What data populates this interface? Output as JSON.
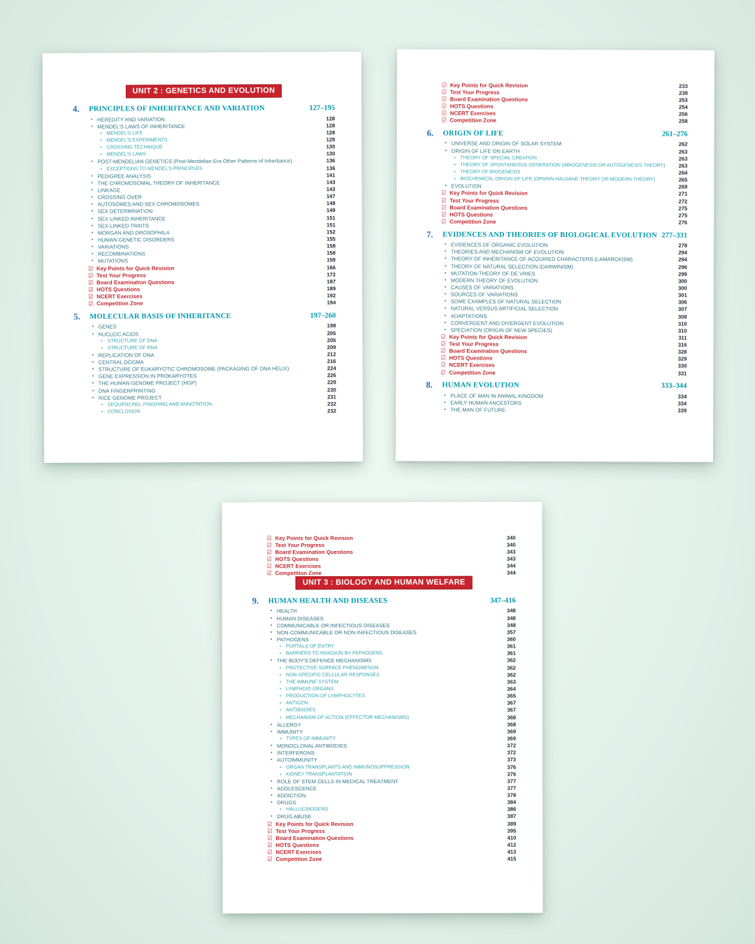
{
  "colors": {
    "background_top": "#eef8f3",
    "background_edge": "#d3e6de",
    "page": "#ffffff",
    "banner_red": "#c8232c",
    "accent_red": "#c0262c",
    "chapter_number_blue": "#1d6ab4",
    "chapter_teal": "#0098ab",
    "item_teal_dark": "#2f7585",
    "item_teal_light": "#2fa3b0",
    "page_number_dark": "#18262e"
  },
  "icons": {
    "checkbox": "☑",
    "bullet": "•"
  },
  "pages": [
    {
      "name": "toc-page-unit2-left",
      "entries": [
        {
          "t": "banner",
          "label": "UNIT 2 : GENETICS AND EVOLUTION"
        },
        {
          "t": "chapter",
          "num": "4.",
          "label": "PRINCIPLES OF INHERITANCE AND VARIATION",
          "pages": "127–195"
        },
        {
          "t": "i1",
          "label": "HEREDITY AND VARIATION",
          "p": "128"
        },
        {
          "t": "i1",
          "label": "MENDEL'S LAWS OF INHERITANCE",
          "p": "128"
        },
        {
          "t": "i2",
          "label": "MENDEL'S LIFE",
          "p": "128"
        },
        {
          "t": "i2",
          "label": "MENDEL'S EXPERIMENTS",
          "p": "129"
        },
        {
          "t": "i2",
          "label": "CROSSING TECHNIQUE",
          "p": "130"
        },
        {
          "t": "i2",
          "label": "MENDEL'S LAWS",
          "p": "130"
        },
        {
          "t": "i1",
          "label": "POST-MENDELIAN GENETICS (Post-Mendelian Era-Other Patterns of Inheritance)",
          "p": "136"
        },
        {
          "t": "i2",
          "label": "EXCEPTIONS TO MENDEL'S PRINCIPLES",
          "p": "136"
        },
        {
          "t": "i1",
          "label": "PEDIGREE ANALYSIS",
          "p": "141"
        },
        {
          "t": "i1",
          "label": "THE CHROMOSOMAL THEORY OF INHERITANCE",
          "p": "143"
        },
        {
          "t": "i1",
          "label": "LINKAGE",
          "p": "143"
        },
        {
          "t": "i1",
          "label": "CROSSING OVER",
          "p": "147"
        },
        {
          "t": "i1",
          "label": "AUTOSOMES AND SEX CHROMOSOMES",
          "p": "148"
        },
        {
          "t": "i1",
          "label": "SEX DETERMINATION",
          "p": "149"
        },
        {
          "t": "i1",
          "label": "SEX-LINKED INHERITANCE",
          "p": "151"
        },
        {
          "t": "i1",
          "label": "SEX-LINKED TRAITS",
          "p": "151"
        },
        {
          "t": "i1",
          "label": "MORGAN AND ",
          "italic": "DROSOPHILA",
          "p": "152"
        },
        {
          "t": "i1",
          "label": "HUMAN GENETIC DISORDERS",
          "p": "155"
        },
        {
          "t": "i1",
          "label": "VARIATIONS",
          "p": "158"
        },
        {
          "t": "i1",
          "label": "RECOMBINATIONS",
          "p": "158"
        },
        {
          "t": "i1",
          "label": "MUTATIONS",
          "p": "159"
        },
        {
          "t": "red",
          "label": "Key Points for Quick Revision",
          "p": "166"
        },
        {
          "t": "red",
          "label": "Test Your Progress",
          "p": "172"
        },
        {
          "t": "red",
          "label": "Board Examination Questions",
          "p": "187"
        },
        {
          "t": "red",
          "label": "HOTS Questions",
          "p": "189"
        },
        {
          "t": "red",
          "label": "NCERT Exercises",
          "p": "192"
        },
        {
          "t": "red",
          "label": "Competition Zone",
          "p": "194"
        },
        {
          "t": "chapter",
          "num": "5.",
          "label": "MOLECULAR BASIS OF INHERITANCE",
          "pages": "197–260"
        },
        {
          "t": "i1",
          "label": "GENES",
          "p": "198"
        },
        {
          "t": "i1",
          "label": "NUCLEIC ACIDS",
          "p": "205"
        },
        {
          "t": "i2",
          "label": "STRUCTURE OF DNA",
          "p": "205"
        },
        {
          "t": "i2",
          "label": "STRUCTURE OF RNA",
          "p": "209"
        },
        {
          "t": "i1",
          "label": "REPLICATION OF DNA",
          "p": "212"
        },
        {
          "t": "i1",
          "label": "CENTRAL DOGMA",
          "p": "216"
        },
        {
          "t": "i1",
          "label": "STRUCTURE OF EUKARYOTIC CHROMOSOME (PACKAGING OF DNA HELIX)",
          "p": "224"
        },
        {
          "t": "i1",
          "label": "GENE EXPRESSION IN PROKARYOTES",
          "p": "226"
        },
        {
          "t": "i1",
          "label": "THE HUMAN GENOME PROJECT (HGP)",
          "p": "229"
        },
        {
          "t": "i1",
          "label": "DNA FINGERPRINTING",
          "p": "230"
        },
        {
          "t": "i1",
          "label": "RICE GENOME PROJECT",
          "p": "231"
        },
        {
          "t": "i2",
          "label": "SEQUENCING, FINISHING AND ANNOTATION",
          "p": "232"
        },
        {
          "t": "i2",
          "label": "CONCLUSION",
          "p": "232"
        }
      ]
    },
    {
      "name": "toc-page-unit2-right",
      "entries": [
        {
          "t": "red",
          "label": "Key Points for Quick Revision",
          "p": "233"
        },
        {
          "t": "red",
          "label": "Test Your Progress",
          "p": "238"
        },
        {
          "t": "red",
          "label": "Board Examination Questions",
          "p": "253"
        },
        {
          "t": "red",
          "label": "HOTS Questions",
          "p": "254"
        },
        {
          "t": "red",
          "label": "NCERT Exercises",
          "p": "256"
        },
        {
          "t": "red",
          "label": "Competition Zone",
          "p": "258"
        },
        {
          "t": "chapter",
          "num": "6.",
          "label": "ORIGIN OF LIFE",
          "pages": "261–276"
        },
        {
          "t": "i1",
          "label": "UNIVERSE AND ORIGIN OF SOLAR SYSTEM",
          "p": "262"
        },
        {
          "t": "i1",
          "label": "ORIGIN OF LIFE ON EARTH",
          "p": "263"
        },
        {
          "t": "i2",
          "label": "THEORY OF SPECIAL CREATION",
          "p": "263"
        },
        {
          "t": "i2",
          "label": "THEORY OF SPONTANEOUS GENERATION (ABIOGENESIS OR AUTOGENESIS THEORY)",
          "p": "263"
        },
        {
          "t": "i2",
          "label": "THEORY OF BIOGENESIS",
          "p": "264"
        },
        {
          "t": "i2",
          "label": "BIOCHEMICAL ORIGIN OF LIFE (OPARIN-HALDANE THEORY OR MODERN THEORY)",
          "p": "265"
        },
        {
          "t": "i1",
          "label": "EVOLUTION",
          "p": "269"
        },
        {
          "t": "red",
          "label": "Key Points for Quick Revision",
          "p": "271"
        },
        {
          "t": "red",
          "label": "Test Your Progress",
          "p": "272"
        },
        {
          "t": "red",
          "label": "Board Examination Questions",
          "p": "275"
        },
        {
          "t": "red",
          "label": "HOTS Questions",
          "p": "275"
        },
        {
          "t": "red",
          "label": "Competition Zone",
          "p": "276"
        },
        {
          "t": "chapter",
          "num": "7.",
          "label": "EVIDENCES AND THEORIES OF BIOLOGICAL EVOLUTION",
          "pages": "277–331"
        },
        {
          "t": "i1",
          "label": "EVIDENCES OF ORGANIC EVOLUTION",
          "p": "278"
        },
        {
          "t": "i1",
          "label": "THEORIES AND MECHANISM OF EVOLUTION",
          "p": "294"
        },
        {
          "t": "i1",
          "label": "THEORY OF INHERITANCE OF ACQUIRED CHARACTERS (LAMARCKISM)",
          "p": "294"
        },
        {
          "t": "i1",
          "label": "THEORY OF NATURAL SELECTION (DARWINISM)",
          "p": "296"
        },
        {
          "t": "i1",
          "label": "MUTATION THEORY OF DE VRIES",
          "p": "299"
        },
        {
          "t": "i1",
          "label": "MODERN THEORY OF EVOLUTION",
          "p": "300"
        },
        {
          "t": "i1",
          "label": "CAUSES OF VARIATIONS",
          "p": "300"
        },
        {
          "t": "i1",
          "label": "SOURCES OF VARIATIONS",
          "p": "301"
        },
        {
          "t": "i1",
          "label": "SOME EXAMPLES OF NATURAL SELECTION",
          "p": "306"
        },
        {
          "t": "i1",
          "label": "NATURAL VERSUS ARTIFICIAL SELECTION",
          "p": "307"
        },
        {
          "t": "i1",
          "label": "ADAPTATIONS",
          "p": "308"
        },
        {
          "t": "i1",
          "label": "CONVERGENT AND DIVERGENT EVOLUTION",
          "p": "310"
        },
        {
          "t": "i1",
          "label": "SPECIATION (ORIGIN OF NEW SPECIES)",
          "p": "310"
        },
        {
          "t": "red",
          "label": "Key Points for Quick Revision",
          "p": "311"
        },
        {
          "t": "red",
          "label": "Test Your Progress",
          "p": "316"
        },
        {
          "t": "red",
          "label": "Board Examination Questions",
          "p": "328"
        },
        {
          "t": "red",
          "label": "HOTS Questions",
          "p": "329"
        },
        {
          "t": "red",
          "label": "NCERT Exercises",
          "p": "330"
        },
        {
          "t": "red",
          "label": "Competition Zone",
          "p": "331"
        },
        {
          "t": "chapter",
          "num": "8.",
          "label": "HUMAN EVOLUTION",
          "pages": "333–344"
        },
        {
          "t": "i1",
          "label": "PLACE OF MAN IN ANIMAL KINGDOM",
          "p": "334"
        },
        {
          "t": "i1",
          "label": "EARLY HUMAN ANCESTORS",
          "p": "334"
        },
        {
          "t": "i1",
          "label": "THE MAN OF FUTURE",
          "p": "339"
        }
      ]
    },
    {
      "name": "toc-page-unit3-bottom",
      "entries": [
        {
          "t": "red",
          "label": "Key Points for Quick Revision",
          "p": "340"
        },
        {
          "t": "red",
          "label": "Test Your Progress",
          "p": "340"
        },
        {
          "t": "red",
          "label": "Board Examination Questions",
          "p": "343"
        },
        {
          "t": "red",
          "label": "HOTS Questions",
          "p": "343"
        },
        {
          "t": "red",
          "label": "NCERT Exercises",
          "p": "344"
        },
        {
          "t": "red",
          "label": "Competition Zone",
          "p": "344"
        },
        {
          "t": "banner",
          "label": "UNIT 3 : BIOLOGY AND HUMAN WELFARE"
        },
        {
          "t": "chapter",
          "num": "9.",
          "label": "HUMAN HEALTH AND DISEASES",
          "pages": "347–416"
        },
        {
          "t": "i1",
          "label": "HEALTH",
          "p": "348"
        },
        {
          "t": "i1",
          "label": "HUMAN DISEASES",
          "p": "348"
        },
        {
          "t": "i1",
          "label": "COMMUNICABLE OR INFECTIOUS DISEASES",
          "p": "348"
        },
        {
          "t": "i1",
          "label": "NON-COMMUNICABLE OR NON-INFECTIOUS DISEASES",
          "p": "357"
        },
        {
          "t": "i1",
          "label": "PATHOGENS",
          "p": "360"
        },
        {
          "t": "i2",
          "label": "PORTALS OF ENTRY",
          "p": "361"
        },
        {
          "t": "i2",
          "label": "BARRIERS TO INVASION BY PATHOGENS",
          "p": "361"
        },
        {
          "t": "i1",
          "label": "THE BODY'S DEFENCE MECHANISMS",
          "p": "362"
        },
        {
          "t": "i2",
          "label": "PROTECTIVE SURFACE PHENOMENON",
          "p": "362"
        },
        {
          "t": "i2",
          "label": "NON-SPECIFIC CELLULAR RESPONSES",
          "p": "362"
        },
        {
          "t": "i2",
          "label": "THE IMMUNE SYSTEM",
          "p": "363"
        },
        {
          "t": "i2",
          "label": "LYMPHOID ORGANS",
          "p": "364"
        },
        {
          "t": "i2",
          "label": "PRODUCTION OF LYMPHOCYTES",
          "p": "365"
        },
        {
          "t": "i2",
          "label": "ANTIGEN",
          "p": "367"
        },
        {
          "t": "i2",
          "label": "ANTIBODIES",
          "p": "367"
        },
        {
          "t": "i2",
          "label": "MECHANISM OF ACTION (EFFECTOR MECHANISMS)",
          "p": "368"
        },
        {
          "t": "i1",
          "label": "ALLERGY",
          "p": "368"
        },
        {
          "t": "i1",
          "label": "IMMUNITY",
          "p": "369"
        },
        {
          "t": "i2",
          "label": "TYPES OF IMMUNITY",
          "p": "369"
        },
        {
          "t": "i1",
          "label": "MONOCLONAL ANTIBODIES",
          "p": "372"
        },
        {
          "t": "i1",
          "label": "INTERFERONS",
          "p": "372"
        },
        {
          "t": "i1",
          "label": "AUTOIMMUNITY",
          "p": "373"
        },
        {
          "t": "i2",
          "label": "ORGAN TRANSPLANTS AND IMMUNOSUPPRESSION",
          "p": "376"
        },
        {
          "t": "i2",
          "label": "KIDNEY TRANSPLANTATION",
          "p": "376"
        },
        {
          "t": "i1",
          "label": "ROLE OF STEM CELLS IN MEDICAL TREATMENT",
          "p": "377"
        },
        {
          "t": "i1",
          "label": "ADOLESCENCE",
          "p": "377"
        },
        {
          "t": "i1",
          "label": "ADDICTION",
          "p": "378"
        },
        {
          "t": "i1",
          "label": "DRUGS",
          "p": "384"
        },
        {
          "t": "i2",
          "label": "HALLUCINOGENS",
          "p": "386"
        },
        {
          "t": "i1",
          "label": "DRUG ABUSE",
          "p": "387"
        },
        {
          "t": "red",
          "label": "Key Points for Quick Revision",
          "p": "389"
        },
        {
          "t": "red",
          "label": "Test Your Progress",
          "p": "395"
        },
        {
          "t": "red",
          "label": "Board Examination Questions",
          "p": "410"
        },
        {
          "t": "red",
          "label": "HOTS Questions",
          "p": "412"
        },
        {
          "t": "red",
          "label": "NCERT Exercises",
          "p": "413"
        },
        {
          "t": "red",
          "label": "Competition Zone",
          "p": "415"
        }
      ]
    }
  ]
}
